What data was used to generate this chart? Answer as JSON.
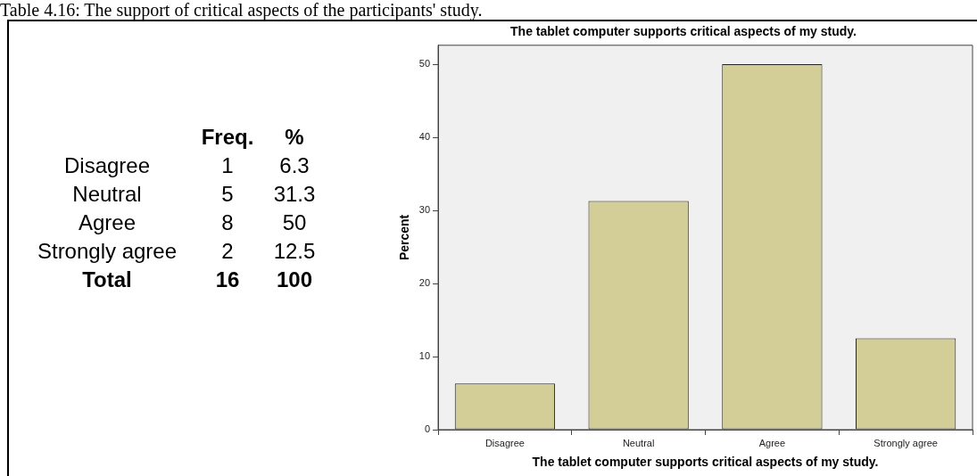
{
  "chart_data": [
    {
      "type": "other",
      "title": "Table 4.16: The support of critical aspects of the participants' study.",
      "annotations": [
        "Freq.",
        "%",
        "Disagree",
        "1",
        "6.3",
        "Neutral",
        "5",
        "31.3",
        "Agree",
        "8",
        "50",
        "Strongly agree",
        "2",
        "12.5",
        "Total",
        "16",
        "100"
      ]
    },
    {
      "type": "bar",
      "title": "The tablet computer supports critical aspects of my study.",
      "xlabel": "The tablet computer supports critical aspects of my study.",
      "ylabel": "Percent",
      "categories": [
        "Disagree",
        "Neutral",
        "Agree",
        "Strongly agree"
      ],
      "values": [
        6.3,
        31.3,
        50,
        12.5
      ],
      "color": "#d3ce98",
      "ylim": [
        0,
        52.6
      ],
      "yticks": [
        0,
        10,
        20,
        30,
        40,
        50
      ]
    }
  ]
}
